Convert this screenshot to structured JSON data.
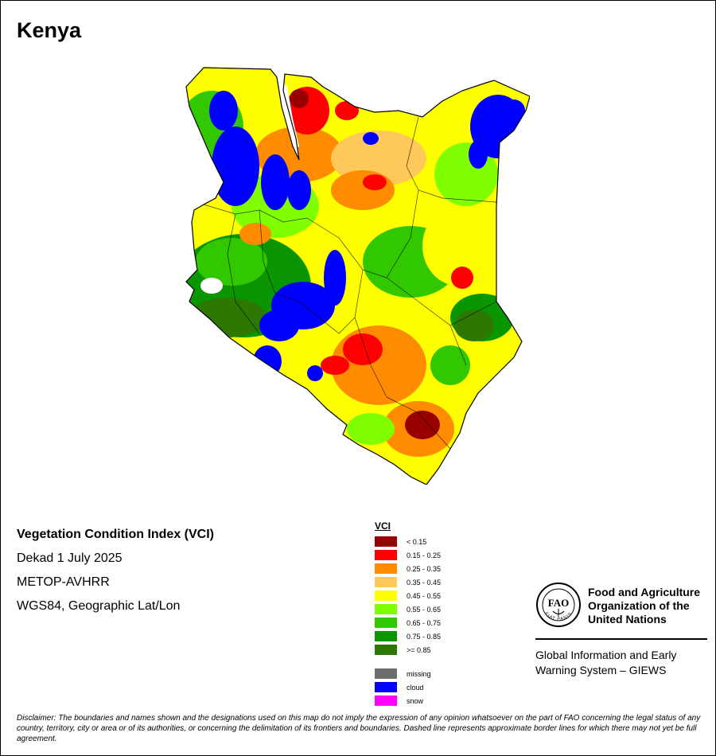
{
  "title": "Kenya",
  "info": {
    "index_name": "Vegetation Condition Index (VCI)",
    "period": "Dekad 1 July 2025",
    "sensor": "METOP-AVHRR",
    "projection": "WGS84, Geographic Lat/Lon"
  },
  "legend": {
    "heading": "VCI",
    "classes": [
      {
        "label": "< 0.15",
        "color": "#990000"
      },
      {
        "label": "0.15 - 0.25",
        "color": "#ff0000"
      },
      {
        "label": "0.25 - 0.35",
        "color": "#ff8c00"
      },
      {
        "label": "0.35 - 0.45",
        "color": "#ffc85a"
      },
      {
        "label": "0.45 - 0.55",
        "color": "#ffff00"
      },
      {
        "label": "0.55 - 0.65",
        "color": "#80ff00"
      },
      {
        "label": "0.65 - 0.75",
        "color": "#32c800"
      },
      {
        "label": "0.75 - 0.85",
        "color": "#0a9600"
      },
      {
        "label": ">= 0.85",
        "color": "#2d7800"
      }
    ],
    "special": [
      {
        "label": "missing",
        "color": "#6e6e6e"
      },
      {
        "label": "cloud",
        "color": "#0000ff"
      },
      {
        "label": "snow",
        "color": "#ff00ff"
      }
    ]
  },
  "fao": {
    "logo_text": "FAO",
    "logo_motto": "FIAT PANIS",
    "name_line1": "Food and Agriculture",
    "name_line2": "Organization of the",
    "name_line3": "United Nations",
    "giews_line1": "Global Information and Early",
    "giews_line2": "Warning System – GIEWS"
  },
  "disclaimer_label": "Disclaimer:",
  "disclaimer": " The boundaries and names shown and the designations used on this map do not imply the expression of any opinion whatsoever on the part of FAO concerning the legal status of any country, territory, city or area or of its authorities, or concerning the delimitation of its frontiers and boundaries. Dashed line represents approximate border lines for which there may not yet be full agreement."
}
